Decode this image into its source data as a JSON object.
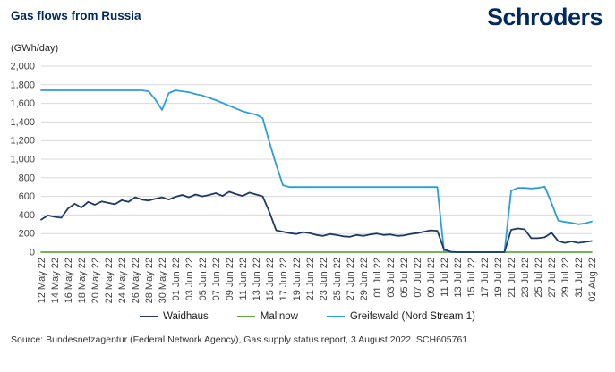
{
  "header": {
    "title": "Gas flows from Russia",
    "logo_text": "Schroders"
  },
  "chart_data": {
    "type": "line",
    "title": "Gas flows from Russia",
    "xlabel": "",
    "ylabel": "(GWh/day)",
    "ylim": [
      0,
      2000
    ],
    "ytick_step": 200,
    "grid": true,
    "legend_position": "bottom",
    "x_label_every_n_points": 2,
    "x_labels": [
      "12 May 22",
      "14 May 22",
      "16 May 22",
      "18 May 22",
      "20 May 22",
      "22 May 22",
      "24 May 22",
      "26 May 22",
      "28 May 22",
      "30 May 22",
      "01 Jun 22",
      "03 Jun 22",
      "05 Jun 22",
      "07 Jun 22",
      "09 Jun 22",
      "11 Jun 22",
      "13 Jun 22",
      "15 Jun 22",
      "17 Jun 22",
      "19 Jun 22",
      "21 Jun 22",
      "23 Jun 22",
      "25 Jun 22",
      "27 Jun 22",
      "29 Jun 22",
      "01 Jul 22",
      "03 Jul 22",
      "05 Jul 22",
      "07 Jul 22",
      "09 Jul 22",
      "11 Jul 22",
      "13 Jul 22",
      "15 Jul 22",
      "17 Jul 22",
      "19 Jul 22",
      "21 Jul 22",
      "23 Jul 22",
      "25 Jul 22",
      "27 Jul 22",
      "29 Jul 22",
      "31 Jul 22",
      "02 Aug 22"
    ],
    "series": [
      {
        "name": "Waidhaus",
        "color": "#1F3864",
        "values": [
          350,
          395,
          380,
          370,
          470,
          520,
          480,
          540,
          510,
          545,
          530,
          515,
          560,
          540,
          590,
          565,
          555,
          575,
          590,
          565,
          595,
          615,
          590,
          620,
          600,
          615,
          635,
          605,
          650,
          625,
          605,
          640,
          620,
          600,
          430,
          235,
          220,
          205,
          195,
          215,
          205,
          185,
          175,
          195,
          185,
          170,
          165,
          185,
          175,
          190,
          200,
          185,
          190,
          175,
          180,
          195,
          205,
          220,
          235,
          230,
          30,
          5,
          0,
          0,
          0,
          0,
          0,
          0,
          0,
          0,
          240,
          255,
          245,
          150,
          150,
          160,
          210,
          120,
          100,
          115,
          100,
          110,
          120
        ]
      },
      {
        "name": "Mallnow",
        "color": "#62A744",
        "values": [
          0,
          0,
          0,
          0,
          0,
          0,
          0,
          0,
          0,
          0,
          0,
          0,
          0,
          0,
          0,
          0,
          0,
          0,
          0,
          0,
          0,
          0,
          0,
          0,
          0,
          0,
          0,
          0,
          0,
          0,
          0,
          0,
          0,
          0,
          0,
          0,
          0,
          0,
          0,
          0,
          0,
          0,
          0,
          0,
          0,
          0,
          0,
          0,
          0,
          0,
          0,
          0,
          0,
          0,
          0,
          0,
          0,
          0,
          0,
          0,
          0,
          0,
          0,
          0,
          0,
          0,
          0,
          0,
          0,
          0,
          0,
          0,
          0,
          0,
          0,
          0,
          0,
          0,
          0,
          0,
          0,
          0,
          0
        ]
      },
      {
        "name": "Greifswald (Nord Stream 1)",
        "color": "#2F9CD8",
        "values": [
          1740,
          1740,
          1740,
          1740,
          1740,
          1740,
          1740,
          1740,
          1740,
          1740,
          1740,
          1740,
          1740,
          1740,
          1740,
          1740,
          1730,
          1640,
          1530,
          1710,
          1740,
          1730,
          1720,
          1700,
          1685,
          1660,
          1635,
          1605,
          1575,
          1545,
          1515,
          1495,
          1480,
          1440,
          1180,
          940,
          720,
          700,
          700,
          700,
          700,
          700,
          700,
          700,
          700,
          700,
          700,
          700,
          700,
          700,
          700,
          700,
          700,
          700,
          700,
          700,
          700,
          700,
          700,
          700,
          10,
          0,
          0,
          0,
          0,
          0,
          0,
          0,
          0,
          0,
          660,
          690,
          690,
          685,
          690,
          705,
          530,
          340,
          325,
          315,
          300,
          310,
          330
        ]
      }
    ]
  },
  "footer": {
    "source": "Source: Bundesnetzagentur (Federal Network Agency), Gas supply status report, 3 August 2022. SCH605761"
  }
}
